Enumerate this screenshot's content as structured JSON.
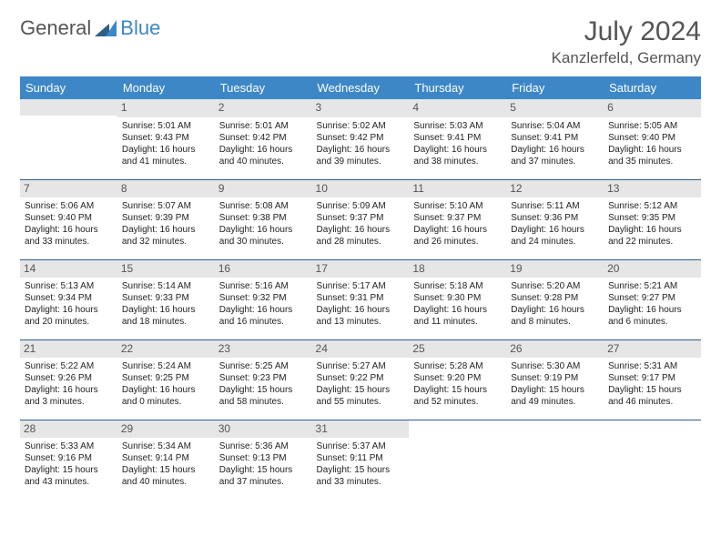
{
  "brand": {
    "text1": "General",
    "text2": "Blue"
  },
  "title": "July 2024",
  "location": "Kanzlerfeld, Germany",
  "colors": {
    "header_bg": "#3d87c7",
    "header_text": "#ffffff",
    "row_divider": "#2f5d87",
    "daynum_bg": "#e6e6e6",
    "title_color": "#555555",
    "body_text": "#222222",
    "logo_gray": "#555555",
    "logo_blue": "#3d87c7"
  },
  "fonts": {
    "title_pt": 30,
    "location_pt": 17,
    "weekday_pt": 13,
    "daynum_pt": 12,
    "cell_pt": 10
  },
  "weekdays": [
    "Sunday",
    "Monday",
    "Tuesday",
    "Wednesday",
    "Thursday",
    "Friday",
    "Saturday"
  ],
  "weeks": [
    [
      null,
      {
        "n": "1",
        "sr": "Sunrise: 5:01 AM",
        "ss": "Sunset: 9:43 PM",
        "dl": "Daylight: 16 hours and 41 minutes."
      },
      {
        "n": "2",
        "sr": "Sunrise: 5:01 AM",
        "ss": "Sunset: 9:42 PM",
        "dl": "Daylight: 16 hours and 40 minutes."
      },
      {
        "n": "3",
        "sr": "Sunrise: 5:02 AM",
        "ss": "Sunset: 9:42 PM",
        "dl": "Daylight: 16 hours and 39 minutes."
      },
      {
        "n": "4",
        "sr": "Sunrise: 5:03 AM",
        "ss": "Sunset: 9:41 PM",
        "dl": "Daylight: 16 hours and 38 minutes."
      },
      {
        "n": "5",
        "sr": "Sunrise: 5:04 AM",
        "ss": "Sunset: 9:41 PM",
        "dl": "Daylight: 16 hours and 37 minutes."
      },
      {
        "n": "6",
        "sr": "Sunrise: 5:05 AM",
        "ss": "Sunset: 9:40 PM",
        "dl": "Daylight: 16 hours and 35 minutes."
      }
    ],
    [
      {
        "n": "7",
        "sr": "Sunrise: 5:06 AM",
        "ss": "Sunset: 9:40 PM",
        "dl": "Daylight: 16 hours and 33 minutes."
      },
      {
        "n": "8",
        "sr": "Sunrise: 5:07 AM",
        "ss": "Sunset: 9:39 PM",
        "dl": "Daylight: 16 hours and 32 minutes."
      },
      {
        "n": "9",
        "sr": "Sunrise: 5:08 AM",
        "ss": "Sunset: 9:38 PM",
        "dl": "Daylight: 16 hours and 30 minutes."
      },
      {
        "n": "10",
        "sr": "Sunrise: 5:09 AM",
        "ss": "Sunset: 9:37 PM",
        "dl": "Daylight: 16 hours and 28 minutes."
      },
      {
        "n": "11",
        "sr": "Sunrise: 5:10 AM",
        "ss": "Sunset: 9:37 PM",
        "dl": "Daylight: 16 hours and 26 minutes."
      },
      {
        "n": "12",
        "sr": "Sunrise: 5:11 AM",
        "ss": "Sunset: 9:36 PM",
        "dl": "Daylight: 16 hours and 24 minutes."
      },
      {
        "n": "13",
        "sr": "Sunrise: 5:12 AM",
        "ss": "Sunset: 9:35 PM",
        "dl": "Daylight: 16 hours and 22 minutes."
      }
    ],
    [
      {
        "n": "14",
        "sr": "Sunrise: 5:13 AM",
        "ss": "Sunset: 9:34 PM",
        "dl": "Daylight: 16 hours and 20 minutes."
      },
      {
        "n": "15",
        "sr": "Sunrise: 5:14 AM",
        "ss": "Sunset: 9:33 PM",
        "dl": "Daylight: 16 hours and 18 minutes."
      },
      {
        "n": "16",
        "sr": "Sunrise: 5:16 AM",
        "ss": "Sunset: 9:32 PM",
        "dl": "Daylight: 16 hours and 16 minutes."
      },
      {
        "n": "17",
        "sr": "Sunrise: 5:17 AM",
        "ss": "Sunset: 9:31 PM",
        "dl": "Daylight: 16 hours and 13 minutes."
      },
      {
        "n": "18",
        "sr": "Sunrise: 5:18 AM",
        "ss": "Sunset: 9:30 PM",
        "dl": "Daylight: 16 hours and 11 minutes."
      },
      {
        "n": "19",
        "sr": "Sunrise: 5:20 AM",
        "ss": "Sunset: 9:28 PM",
        "dl": "Daylight: 16 hours and 8 minutes."
      },
      {
        "n": "20",
        "sr": "Sunrise: 5:21 AM",
        "ss": "Sunset: 9:27 PM",
        "dl": "Daylight: 16 hours and 6 minutes."
      }
    ],
    [
      {
        "n": "21",
        "sr": "Sunrise: 5:22 AM",
        "ss": "Sunset: 9:26 PM",
        "dl": "Daylight: 16 hours and 3 minutes."
      },
      {
        "n": "22",
        "sr": "Sunrise: 5:24 AM",
        "ss": "Sunset: 9:25 PM",
        "dl": "Daylight: 16 hours and 0 minutes."
      },
      {
        "n": "23",
        "sr": "Sunrise: 5:25 AM",
        "ss": "Sunset: 9:23 PM",
        "dl": "Daylight: 15 hours and 58 minutes."
      },
      {
        "n": "24",
        "sr": "Sunrise: 5:27 AM",
        "ss": "Sunset: 9:22 PM",
        "dl": "Daylight: 15 hours and 55 minutes."
      },
      {
        "n": "25",
        "sr": "Sunrise: 5:28 AM",
        "ss": "Sunset: 9:20 PM",
        "dl": "Daylight: 15 hours and 52 minutes."
      },
      {
        "n": "26",
        "sr": "Sunrise: 5:30 AM",
        "ss": "Sunset: 9:19 PM",
        "dl": "Daylight: 15 hours and 49 minutes."
      },
      {
        "n": "27",
        "sr": "Sunrise: 5:31 AM",
        "ss": "Sunset: 9:17 PM",
        "dl": "Daylight: 15 hours and 46 minutes."
      }
    ],
    [
      {
        "n": "28",
        "sr": "Sunrise: 5:33 AM",
        "ss": "Sunset: 9:16 PM",
        "dl": "Daylight: 15 hours and 43 minutes."
      },
      {
        "n": "29",
        "sr": "Sunrise: 5:34 AM",
        "ss": "Sunset: 9:14 PM",
        "dl": "Daylight: 15 hours and 40 minutes."
      },
      {
        "n": "30",
        "sr": "Sunrise: 5:36 AM",
        "ss": "Sunset: 9:13 PM",
        "dl": "Daylight: 15 hours and 37 minutes."
      },
      {
        "n": "31",
        "sr": "Sunrise: 5:37 AM",
        "ss": "Sunset: 9:11 PM",
        "dl": "Daylight: 15 hours and 33 minutes."
      },
      null,
      null,
      null
    ]
  ]
}
